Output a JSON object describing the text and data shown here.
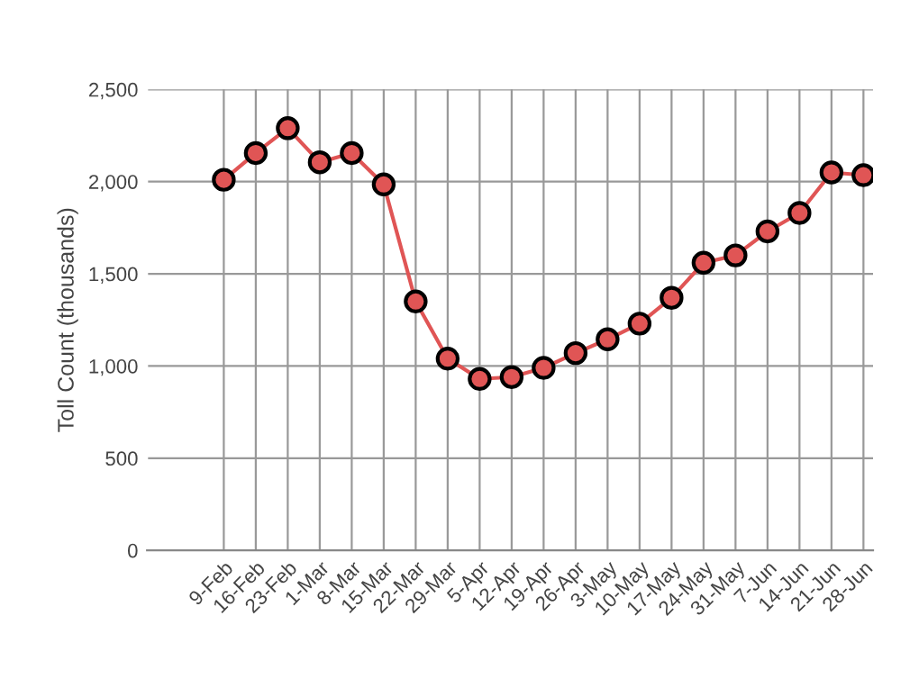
{
  "chart_data": {
    "type": "line",
    "ylabel": "Toll Count (thousands)",
    "categories": [
      "9-Feb",
      "16-Feb",
      "23-Feb",
      "1-Mar",
      "8-Mar",
      "15-Mar",
      "22-Mar",
      "29-Mar",
      "5-Apr",
      "12-Apr",
      "19-Apr",
      "26-Apr",
      "3-May",
      "10-May",
      "17-May",
      "24-May",
      "31-May",
      "7-Jun",
      "14-Jun",
      "21-Jun",
      "28-Jun"
    ],
    "series": [
      {
        "color": "#e05555",
        "values": [
          2010,
          2155,
          2290,
          2105,
          2155,
          1985,
          1350,
          1040,
          930,
          940,
          990,
          1070,
          1145,
          1230,
          1370,
          1560,
          1600,
          1730,
          1830,
          2050,
          2035
        ]
      }
    ],
    "ylim": [
      0,
      2500
    ],
    "yticks": [
      {
        "value": 0,
        "label": "0"
      },
      {
        "value": 500,
        "label": "500"
      },
      {
        "value": 1000,
        "label": "1,000"
      },
      {
        "value": 1500,
        "label": "1,500"
      },
      {
        "value": 2000,
        "label": "2,000"
      },
      {
        "value": 2500,
        "label": "2,500"
      }
    ],
    "grid": true,
    "marker": "circle",
    "line_style": "solid"
  }
}
